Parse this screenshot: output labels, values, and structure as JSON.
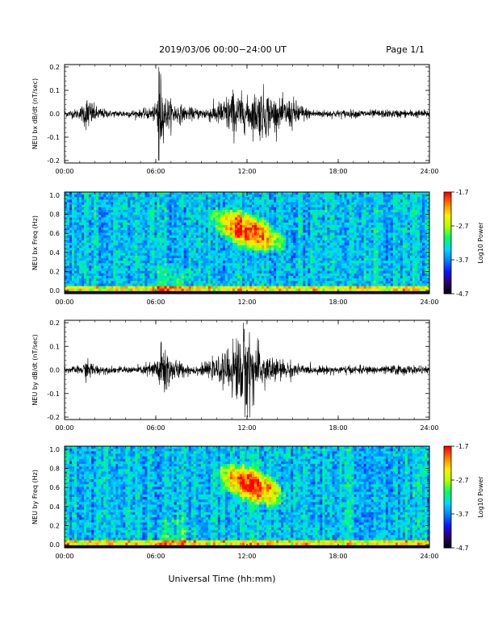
{
  "header": {
    "title": "2019/03/06  00:00−24:00 UT",
    "page": "Page 1/1"
  },
  "colorscale": [
    "#000000",
    "#2a0066",
    "#1010ff",
    "#0080ff",
    "#00d8ff",
    "#00ff60",
    "#b0ff00",
    "#ffee00",
    "#ff8000",
    "#ff0000"
  ],
  "chart_data": [
    {
      "type": "line",
      "ylabel": "NEU bx dB/dt (nT/sec)",
      "xlabel": "",
      "xlim": [
        "00:00",
        "24:00"
      ],
      "ylim": [
        -0.2,
        0.2
      ],
      "xticks": [
        "00:00",
        "06:00",
        "12:00",
        "18:00",
        "24:00"
      ],
      "yticks": [
        "0.2",
        "0.1",
        "0.0",
        "-0.1",
        "-0.2"
      ],
      "grid": false,
      "series": [
        {
          "x": [
            0,
            1,
            1.5,
            2,
            3,
            4,
            5,
            6,
            6.2,
            6.5,
            7,
            8,
            9,
            10,
            10.5,
            11,
            11.5,
            12,
            12.5,
            13,
            13.5,
            14,
            15,
            15.5,
            16,
            17,
            18,
            19,
            20,
            21,
            22,
            23,
            24
          ],
          "amplitude": [
            0.012,
            0.02,
            0.07,
            0.03,
            0.012,
            0.015,
            0.015,
            0.03,
            0.2,
            0.08,
            0.05,
            0.025,
            0.02,
            0.04,
            0.06,
            0.09,
            0.08,
            0.06,
            0.08,
            0.1,
            0.08,
            0.05,
            0.06,
            0.04,
            0.02,
            0.015,
            0.015,
            0.015,
            0.015,
            0.015,
            0.015,
            0.015,
            0.015
          ]
        }
      ]
    },
    {
      "type": "heatmap",
      "ylabel": "NEU bx Freq (Hz)",
      "xlabel": "",
      "xlim": [
        "00:00",
        "24:00"
      ],
      "ylim": [
        0.0,
        1.0
      ],
      "xticks": [
        "00:00",
        "06:00",
        "12:00",
        "18:00",
        "24:00"
      ],
      "yticks": [
        "1.0",
        "0.8",
        "0.6",
        "0.4",
        "0.2",
        "0.0"
      ],
      "colorbar": {
        "label": "Log10 Power",
        "range": [
          -4.7,
          -1.7
        ],
        "ticks": [
          "-1.7",
          "-2.7",
          "-3.7",
          "-4.7"
        ]
      },
      "features": [
        {
          "description": "enhanced emission",
          "time_range_h": [
            9.5,
            14.5
          ],
          "freq_range_hz": [
            0.35,
            0.8
          ],
          "peak_log10_power": -1.7
        },
        {
          "description": "low-frequency band",
          "time_range_h": [
            0,
            24
          ],
          "freq_range_hz": [
            0.0,
            0.06
          ],
          "peak_log10_power": -2.7
        }
      ]
    },
    {
      "type": "line",
      "ylabel": "NEU by dB/dt (nT/sec)",
      "xlabel": "",
      "xlim": [
        "00:00",
        "24:00"
      ],
      "ylim": [
        -0.2,
        0.2
      ],
      "xticks": [
        "00:00",
        "06:00",
        "12:00",
        "18:00",
        "24:00"
      ],
      "yticks": [
        "0.2",
        "0.1",
        "0.0",
        "-0.1",
        "-0.2"
      ],
      "grid": false,
      "series": [
        {
          "x": [
            0,
            1,
            1.5,
            2,
            3,
            4,
            5,
            6,
            6.5,
            7,
            8,
            9,
            10,
            10.5,
            11,
            11.5,
            12,
            12.5,
            13,
            13.5,
            14,
            15,
            15.5,
            16,
            17,
            18,
            19,
            20,
            21,
            22,
            23,
            24
          ],
          "amplitude": [
            0.012,
            0.015,
            0.04,
            0.02,
            0.012,
            0.012,
            0.015,
            0.04,
            0.12,
            0.05,
            0.02,
            0.02,
            0.04,
            0.06,
            0.1,
            0.14,
            0.2,
            0.1,
            0.07,
            0.06,
            0.04,
            0.03,
            0.02,
            0.015,
            0.015,
            0.015,
            0.015,
            0.015,
            0.015,
            0.02,
            0.015,
            0.012
          ]
        }
      ]
    },
    {
      "type": "heatmap",
      "ylabel": "NEU by Freq (Hz)",
      "xlabel": "Universal Time (hh:mm)",
      "xlim": [
        "00:00",
        "24:00"
      ],
      "ylim": [
        0.0,
        1.0
      ],
      "xticks": [
        "00:00",
        "06:00",
        "12:00",
        "18:00",
        "24:00"
      ],
      "yticks": [
        "1.0",
        "0.8",
        "0.6",
        "0.4",
        "0.2",
        "0.0"
      ],
      "colorbar": {
        "label": "Log10 Power",
        "range": [
          -4.7,
          -1.7
        ],
        "ticks": [
          "-1.7",
          "-2.7",
          "-3.7",
          "-4.7"
        ]
      },
      "features": [
        {
          "description": "enhanced emission",
          "time_range_h": [
            10,
            14.5
          ],
          "freq_range_hz": [
            0.35,
            0.85
          ],
          "peak_log10_power": -1.7
        },
        {
          "description": "low-frequency band",
          "time_range_h": [
            0,
            24
          ],
          "freq_range_hz": [
            0.0,
            0.06
          ],
          "peak_log10_power": -2.7
        }
      ]
    }
  ]
}
